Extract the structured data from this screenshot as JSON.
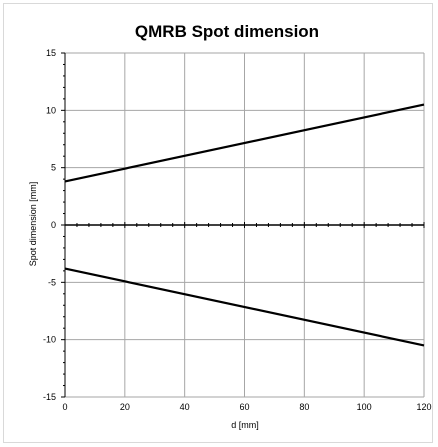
{
  "chart_data": {
    "type": "line",
    "title": "QMRB Spot dimension",
    "xlabel": "d [mm]",
    "ylabel": "Spot dimension [mm]",
    "xlim": [
      0,
      120
    ],
    "ylim": [
      -15,
      15
    ],
    "x_ticks": [
      0,
      20,
      40,
      60,
      80,
      100,
      120
    ],
    "y_ticks": [
      15,
      10,
      5,
      0,
      -5,
      -10,
      -15
    ],
    "grid": true,
    "series": [
      {
        "x": [
          0,
          120
        ],
        "y": [
          3.8,
          10.5
        ]
      },
      {
        "x": [
          0,
          120
        ],
        "y": [
          -3.8,
          -10.5
        ]
      }
    ],
    "line_color": "#000000",
    "grid_color": "#a6a6a6"
  }
}
